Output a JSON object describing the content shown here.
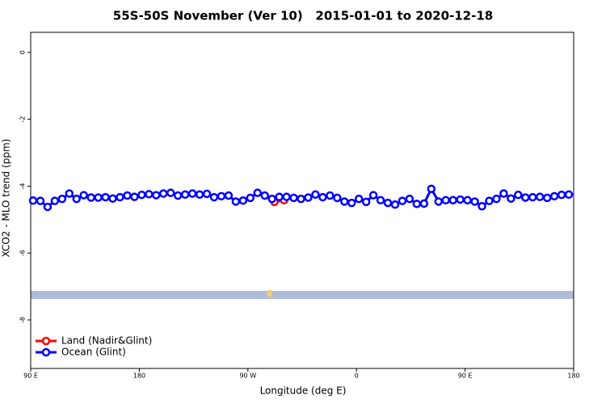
{
  "chart_data": {
    "type": "line",
    "title": "55S-50S November (Ver 10)   2015-01-01 to 2020-12-18",
    "x_label": "Longitude (deg E)",
    "y_label": "XCO2 - MLO trend (ppm)",
    "xlim": [
      90,
      540
    ],
    "xticks": [
      {
        "value": 90,
        "label": "90 E"
      },
      180,
      {
        "value": 270,
        "label": "90 W"
      },
      {
        "value": 360,
        "label": "0"
      },
      {
        "value": 450,
        "label": "90 E"
      },
      {
        "value": 540,
        "label": "180"
      }
    ],
    "ylim": [
      -9.45,
      0.6
    ],
    "yticks": [
      0,
      -2,
      -4,
      -6,
      -8
    ],
    "legend": "bottom-left",
    "series": [
      {
        "name": "Land (Nadir&Glint)",
        "color": "#ff0000",
        "x": [
          292,
          300
        ],
        "values": [
          -4.47,
          -4.42
        ]
      },
      {
        "name": "Ocean (Glint)",
        "color": "#0000ff",
        "x": [
          92,
          98,
          104,
          110,
          116,
          122,
          128,
          134,
          140,
          146,
          152,
          158,
          164,
          170,
          176,
          182,
          188,
          194,
          200,
          206,
          212,
          218,
          224,
          230,
          236,
          242,
          248,
          254,
          260,
          266,
          272,
          278,
          284,
          290,
          296,
          302,
          308,
          314,
          320,
          326,
          332,
          338,
          344,
          350,
          356,
          362,
          368,
          374,
          380,
          386,
          392,
          398,
          404,
          410,
          416,
          422,
          428,
          434,
          440,
          446,
          452,
          458,
          464,
          470,
          476,
          482,
          488,
          494,
          500,
          506,
          512,
          518,
          524,
          530,
          536
        ],
        "values": [
          -4.43,
          -4.44,
          -4.62,
          -4.44,
          -4.38,
          -4.22,
          -4.38,
          -4.27,
          -4.34,
          -4.34,
          -4.33,
          -4.37,
          -4.33,
          -4.28,
          -4.32,
          -4.26,
          -4.24,
          -4.27,
          -4.22,
          -4.2,
          -4.28,
          -4.25,
          -4.22,
          -4.25,
          -4.23,
          -4.33,
          -4.3,
          -4.28,
          -4.46,
          -4.43,
          -4.35,
          -4.2,
          -4.28,
          -4.38,
          -4.32,
          -4.32,
          -4.35,
          -4.38,
          -4.34,
          -4.25,
          -4.33,
          -4.28,
          -4.35,
          -4.46,
          -4.5,
          -4.38,
          -4.47,
          -4.27,
          -4.42,
          -4.5,
          -4.55,
          -4.44,
          -4.38,
          -4.53,
          -4.52,
          -4.08,
          -4.46,
          -4.42,
          -4.42,
          -4.4,
          -4.42,
          -4.46,
          -4.6,
          -4.44,
          -4.38,
          -4.22,
          -4.37,
          -4.26,
          -4.34,
          -4.33,
          -4.32,
          -4.35,
          -4.3,
          -4.26,
          -4.25
        ]
      }
    ]
  }
}
